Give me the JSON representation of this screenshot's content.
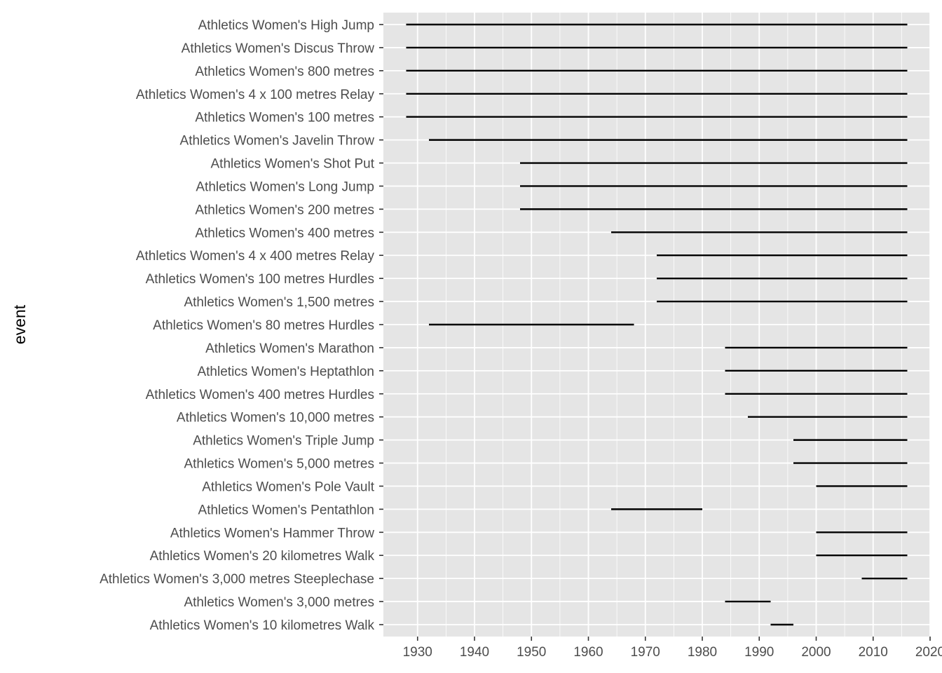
{
  "chart_data": {
    "type": "range",
    "xlabel": "",
    "ylabel": "event",
    "xlim": [
      1924,
      2020
    ],
    "x_ticks": [
      1930,
      1940,
      1950,
      1960,
      1970,
      1980,
      1990,
      2000,
      2010,
      2020
    ],
    "x_tick_labels": [
      "1930",
      "1940",
      "1950",
      "1960",
      "1970",
      "1980",
      "1990",
      "2000",
      "2010",
      "2020"
    ],
    "grid": true,
    "panel_background": "#e5e5e5",
    "grid_color": "#ffffff",
    "segment_color": "#000000",
    "events": [
      {
        "event": "Athletics Women's High Jump",
        "start": 1928,
        "end": 2016
      },
      {
        "event": "Athletics Women's Discus Throw",
        "start": 1928,
        "end": 2016
      },
      {
        "event": "Athletics Women's 800 metres",
        "start": 1928,
        "end": 2016
      },
      {
        "event": "Athletics Women's 4 x 100 metres Relay",
        "start": 1928,
        "end": 2016
      },
      {
        "event": "Athletics Women's 100 metres",
        "start": 1928,
        "end": 2016
      },
      {
        "event": "Athletics Women's Javelin Throw",
        "start": 1932,
        "end": 2016
      },
      {
        "event": "Athletics Women's Shot Put",
        "start": 1948,
        "end": 2016
      },
      {
        "event": "Athletics Women's Long Jump",
        "start": 1948,
        "end": 2016
      },
      {
        "event": "Athletics Women's 200 metres",
        "start": 1948,
        "end": 2016
      },
      {
        "event": "Athletics Women's 400 metres",
        "start": 1964,
        "end": 2016
      },
      {
        "event": "Athletics Women's 4 x 400 metres Relay",
        "start": 1972,
        "end": 2016
      },
      {
        "event": "Athletics Women's 100 metres Hurdles",
        "start": 1972,
        "end": 2016
      },
      {
        "event": "Athletics Women's 1,500 metres",
        "start": 1972,
        "end": 2016
      },
      {
        "event": "Athletics Women's 80 metres Hurdles",
        "start": 1932,
        "end": 1968
      },
      {
        "event": "Athletics Women's Marathon",
        "start": 1984,
        "end": 2016
      },
      {
        "event": "Athletics Women's Heptathlon",
        "start": 1984,
        "end": 2016
      },
      {
        "event": "Athletics Women's 400 metres Hurdles",
        "start": 1984,
        "end": 2016
      },
      {
        "event": "Athletics Women's 10,000 metres",
        "start": 1988,
        "end": 2016
      },
      {
        "event": "Athletics Women's Triple Jump",
        "start": 1996,
        "end": 2016
      },
      {
        "event": "Athletics Women's 5,000 metres",
        "start": 1996,
        "end": 2016
      },
      {
        "event": "Athletics Women's Pole Vault",
        "start": 2000,
        "end": 2016
      },
      {
        "event": "Athletics Women's Pentathlon",
        "start": 1964,
        "end": 1980
      },
      {
        "event": "Athletics Women's Hammer Throw",
        "start": 2000,
        "end": 2016
      },
      {
        "event": "Athletics Women's 20 kilometres Walk",
        "start": 2000,
        "end": 2016
      },
      {
        "event": "Athletics Women's 3,000 metres Steeplechase",
        "start": 2008,
        "end": 2016
      },
      {
        "event": "Athletics Women's 3,000 metres",
        "start": 1984,
        "end": 1992
      },
      {
        "event": "Athletics Women's 10 kilometres Walk",
        "start": 1992,
        "end": 1996
      }
    ]
  }
}
